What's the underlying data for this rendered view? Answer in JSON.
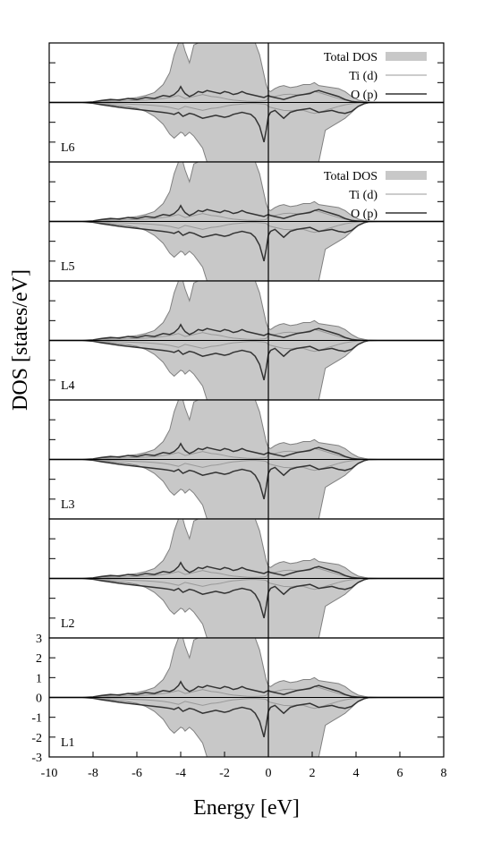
{
  "chart_data": {
    "type": "area",
    "xlabel": "Energy [eV]",
    "ylabel": "DOS [states/eV]",
    "xlim": [
      -10,
      8
    ],
    "ylim": [
      -3,
      3
    ],
    "xticks": [
      -10,
      -8,
      -6,
      -4,
      -2,
      0,
      2,
      4,
      6,
      8
    ],
    "yticks": [
      -3,
      -2,
      -1,
      0,
      1,
      2,
      3
    ],
    "fermi_level": 0,
    "legend": {
      "placement": "top-right",
      "entries": [
        "Total DOS",
        "Ti (d)",
        "O (p)"
      ],
      "shown_in_panels": [
        "L6",
        "L5"
      ]
    },
    "series_style": {
      "Total DOS": {
        "fill": "#c8c8c8",
        "edge": "#808080"
      },
      "Ti (d)": {
        "stroke": "#999999"
      },
      "O (p)": {
        "stroke": "#333333"
      }
    },
    "panels": [
      {
        "label": "L6"
      },
      {
        "label": "L5"
      },
      {
        "label": "L4"
      },
      {
        "label": "L3"
      },
      {
        "label": "L2"
      },
      {
        "label": "L1"
      }
    ],
    "x": [
      -10,
      -8.5,
      -8,
      -7.6,
      -7.2,
      -6.8,
      -6.4,
      -6.0,
      -5.6,
      -5.2,
      -4.8,
      -4.5,
      -4.3,
      -4.1,
      -4.0,
      -3.9,
      -3.8,
      -3.6,
      -3.4,
      -3.2,
      -3.0,
      -2.8,
      -2.6,
      -2.4,
      -2.2,
      -2.0,
      -1.8,
      -1.6,
      -1.4,
      -1.2,
      -1.0,
      -0.8,
      -0.6,
      -0.4,
      -0.2,
      -0.1,
      0.0,
      0.1,
      0.3,
      0.5,
      0.7,
      1.0,
      1.3,
      1.6,
      1.9,
      2.1,
      2.3,
      2.6,
      2.9,
      3.2,
      3.5,
      3.8,
      4.1,
      4.4,
      4.6,
      5.0,
      8
    ],
    "total_up": [
      0,
      0,
      0.02,
      0.08,
      0.1,
      0.15,
      0.2,
      0.25,
      0.35,
      0.5,
      0.9,
      1.5,
      2.4,
      3,
      3,
      3,
      2.6,
      2.0,
      2.9,
      3,
      3,
      3,
      3,
      3,
      3,
      3,
      3,
      3,
      3,
      3,
      3,
      3,
      3,
      2.4,
      1.4,
      0.9,
      0.6,
      0.55,
      0.7,
      0.8,
      0.85,
      0.75,
      0.8,
      0.9,
      0.9,
      1.0,
      0.85,
      0.8,
      0.75,
      0.7,
      0.55,
      0.3,
      0.12,
      0.05,
      0.02,
      0,
      0
    ],
    "total_dn": [
      0,
      0,
      -0.04,
      -0.08,
      -0.12,
      -0.18,
      -0.22,
      -0.3,
      -0.45,
      -0.7,
      -1.1,
      -1.6,
      -1.8,
      -1.6,
      -1.5,
      -1.55,
      -1.7,
      -1.5,
      -1.7,
      -2.0,
      -2.3,
      -3,
      -3,
      -3,
      -3,
      -3,
      -3,
      -3,
      -3,
      -3,
      -3,
      -3,
      -3,
      -3,
      -3,
      -3,
      -3,
      -3,
      -3,
      -3,
      -3,
      -3,
      -3,
      -3,
      -3,
      -3,
      -3,
      -1.4,
      -1.2,
      -1.0,
      -0.8,
      -0.5,
      -0.2,
      -0.06,
      -0.02,
      0,
      0
    ],
    "ti_d_up": [
      0,
      0,
      0.01,
      0.03,
      0.05,
      0.06,
      0.08,
      0.1,
      0.12,
      0.15,
      0.2,
      0.25,
      0.3,
      0.35,
      0.3,
      0.25,
      0.2,
      0.25,
      0.3,
      0.35,
      0.4,
      0.35,
      0.3,
      0.28,
      0.25,
      0.2,
      0.15,
      0.12,
      0.1,
      0.08,
      0.06,
      0.05,
      0.05,
      0.06,
      0.08,
      0.1,
      0.25,
      0.3,
      0.3,
      0.35,
      0.4,
      0.42,
      0.38,
      0.4,
      0.5,
      0.55,
      0.5,
      0.4,
      0.3,
      0.2,
      0.12,
      0.06,
      0.03,
      0.01,
      0,
      0,
      0
    ],
    "ti_d_dn": [
      0,
      0,
      -0.01,
      -0.03,
      -0.05,
      -0.06,
      -0.08,
      -0.1,
      -0.12,
      -0.15,
      -0.2,
      -0.25,
      -0.3,
      -0.35,
      -0.3,
      -0.25,
      -0.2,
      -0.25,
      -0.3,
      -0.35,
      -0.4,
      -0.35,
      -0.3,
      -0.28,
      -0.25,
      -0.2,
      -0.15,
      -0.12,
      -0.1,
      -0.08,
      -0.06,
      -0.05,
      -0.05,
      -0.06,
      -0.08,
      -0.1,
      -0.2,
      -0.25,
      -0.3,
      -0.35,
      -0.4,
      -0.42,
      -0.38,
      -0.4,
      -0.5,
      -0.55,
      -0.5,
      -0.4,
      -0.3,
      -0.2,
      -0.12,
      -0.06,
      -0.03,
      -0.01,
      0,
      0,
      0
    ],
    "o_p_up": [
      0,
      0,
      0.03,
      0.1,
      0.15,
      0.12,
      0.2,
      0.15,
      0.25,
      0.2,
      0.35,
      0.3,
      0.4,
      0.6,
      0.8,
      0.6,
      0.45,
      0.3,
      0.4,
      0.55,
      0.5,
      0.6,
      0.55,
      0.5,
      0.45,
      0.55,
      0.5,
      0.4,
      0.45,
      0.55,
      0.45,
      0.4,
      0.35,
      0.3,
      0.25,
      0.3,
      0.35,
      0.3,
      0.25,
      0.2,
      0.15,
      0.25,
      0.35,
      0.4,
      0.45,
      0.55,
      0.6,
      0.5,
      0.4,
      0.3,
      0.15,
      0.05,
      0.02,
      0,
      0,
      0,
      0
    ],
    "o_p_dn": [
      0,
      0,
      -0.04,
      -0.12,
      -0.18,
      -0.25,
      -0.3,
      -0.35,
      -0.4,
      -0.45,
      -0.5,
      -0.55,
      -0.6,
      -0.5,
      -0.6,
      -0.7,
      -0.65,
      -0.55,
      -0.6,
      -0.7,
      -0.8,
      -0.75,
      -0.7,
      -0.65,
      -0.7,
      -0.75,
      -0.7,
      -0.6,
      -0.55,
      -0.5,
      -0.55,
      -0.6,
      -0.8,
      -1.2,
      -2.0,
      -1.4,
      -0.7,
      -0.5,
      -0.4,
      -0.6,
      -0.8,
      -0.5,
      -0.4,
      -0.35,
      -0.3,
      -0.4,
      -0.5,
      -0.45,
      -0.4,
      -0.5,
      -0.55,
      -0.45,
      -0.2,
      -0.05,
      0,
      0,
      0
    ]
  }
}
